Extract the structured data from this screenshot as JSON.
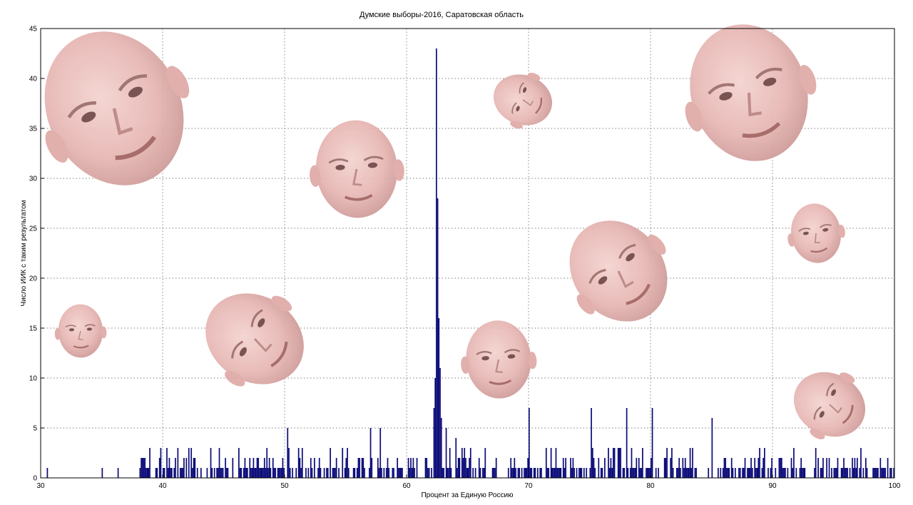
{
  "chart_data": {
    "type": "bar",
    "title": "Думские выборы-2016, Саратовская область",
    "xlabel": "Процент за Единую Россию",
    "ylabel": "Число ИИК с таким результатом",
    "xlim": [
      30,
      100
    ],
    "ylim": [
      0,
      45
    ],
    "xticks": [
      "30",
      "40",
      "50",
      "60",
      "70",
      "80",
      "90",
      "100"
    ],
    "yticks": [
      "0",
      "5",
      "10",
      "15",
      "20",
      "25",
      "30",
      "35",
      "40",
      "45"
    ],
    "grid": true,
    "bar_color": "#0b0b78",
    "peak_bars": [
      {
        "x": 62.2,
        "y": 7
      },
      {
        "x": 62.3,
        "y": 10
      },
      {
        "x": 62.4,
        "y": 43
      },
      {
        "x": 62.5,
        "y": 28
      },
      {
        "x": 62.6,
        "y": 16
      },
      {
        "x": 62.7,
        "y": 11
      },
      {
        "x": 62.8,
        "y": 6
      },
      {
        "x": 63.2,
        "y": 5
      },
      {
        "x": 64.0,
        "y": 4
      },
      {
        "x": 70.0,
        "y": 7
      },
      {
        "x": 75.1,
        "y": 7
      },
      {
        "x": 78.0,
        "y": 7
      },
      {
        "x": 80.1,
        "y": 7
      },
      {
        "x": 85.0,
        "y": 6
      },
      {
        "x": 50.2,
        "y": 5
      },
      {
        "x": 57.0,
        "y": 5
      },
      {
        "x": 57.8,
        "y": 5
      }
    ],
    "background_bars": "mostly 0-3 polling stations per bin across 38-99%",
    "decorations": "superimposed semi-transparent face photos (10)"
  }
}
